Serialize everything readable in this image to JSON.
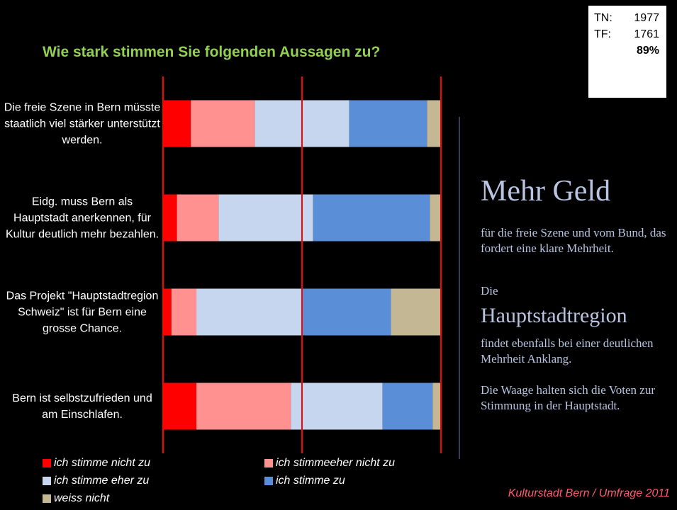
{
  "chart_data": {
    "type": "stacked_barh",
    "title": "Wie stark stimmen Sie folgenden Aussagen zu?",
    "categories": [
      "Die freie Szene in Bern müsste staatlich viel stärker unterstützt werden.",
      "Eidg. muss Bern als Hauptstadt anerkennen, für Kultur deutlich mehr bezahlen.",
      "Das Projekt \"Hauptstadtregion Schweiz\" ist für Bern eine grosse Chance.",
      "Bern ist selbstzufrieden und am Einschlafen."
    ],
    "series": [
      {
        "name": "ich stimme nicht zu",
        "color": "#ff0000",
        "values": [
          10,
          5,
          3,
          12
        ]
      },
      {
        "name": "ich stimmeeher nicht zu",
        "color": "#ff9191",
        "values": [
          23,
          15,
          9,
          34
        ]
      },
      {
        "name": "ich stimme eher zu",
        "color": "#c6d6ee",
        "values": [
          34,
          34,
          38,
          33
        ]
      },
      {
        "name": "ich stimme zu",
        "color": "#5a8ed6",
        "values": [
          28,
          42,
          32,
          18
        ]
      },
      {
        "name": "weiss nicht",
        "color": "#c4b894",
        "values": [
          5,
          4,
          18,
          3
        ]
      }
    ],
    "xlim": [
      0,
      100
    ],
    "xticks": [
      0,
      50,
      100
    ],
    "grid": true,
    "grid_color": "#ff0000"
  },
  "info_box": {
    "rows": [
      [
        "TN:",
        "1977"
      ],
      [
        "TF:",
        "1761"
      ]
    ],
    "share": "89%"
  },
  "side_text": {
    "headline": "Mehr Geld",
    "p1": "für die freie Szene und vom Bund, das fordert eine klare Mehrheit.",
    "p2a": "Die",
    "p2b": "Hauptstadtregion",
    "p2c": "findet ebenfalls bei einer deutlichen Mehrheit Anklang.",
    "p3": "Die Waage halten sich die Voten zur Stimmung in der Hauptstadt."
  },
  "footer": "Kulturstadt Bern / Umfrage 2011"
}
